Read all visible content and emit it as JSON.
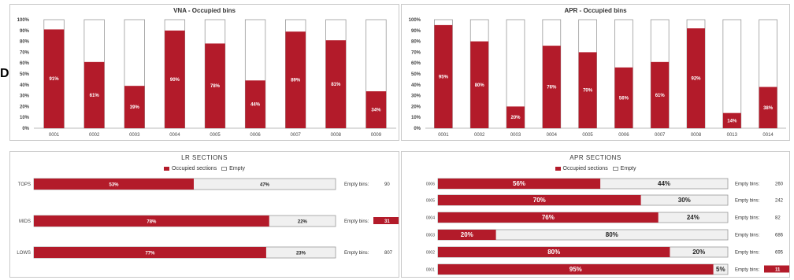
{
  "colors": {
    "occupied": "#b31b2a",
    "empty_vertical": "#ffffff",
    "empty_horizontal": "#f0f0f0",
    "outline": "#999999"
  },
  "side_mark": "D",
  "vna": {
    "title": "VNA - Occupied bins",
    "y_ticks": [
      "0%",
      "10%",
      "20%",
      "30%",
      "40%",
      "50%",
      "60%",
      "70%",
      "80%",
      "90%",
      "100%"
    ],
    "categories": [
      "0001",
      "0002",
      "0003",
      "0004",
      "0005",
      "0006",
      "0007",
      "0008",
      "0009"
    ],
    "values": [
      91,
      61,
      39,
      90,
      78,
      44,
      89,
      81,
      34
    ],
    "labels": [
      "91%",
      "61%",
      "39%",
      "90%",
      "78%",
      "44%",
      "89%",
      "81%",
      "34%"
    ]
  },
  "apr_bins": {
    "title": "APR - Occupied bins",
    "y_ticks": [
      "0%",
      "10%",
      "20%",
      "30%",
      "40%",
      "50%",
      "60%",
      "70%",
      "80%",
      "90%",
      "100%"
    ],
    "categories": [
      "0001",
      "0002",
      "0003",
      "0004",
      "0005",
      "0006",
      "0007",
      "0008",
      "0013",
      "0014"
    ],
    "values": [
      95,
      80,
      20,
      76,
      70,
      56,
      61,
      92,
      14,
      38
    ],
    "labels": [
      "95%",
      "80%",
      "20%",
      "76%",
      "70%",
      "56%",
      "61%",
      "92%",
      "14%",
      "38%"
    ]
  },
  "lr": {
    "title": "LR SECTIONS",
    "legend_occupied": "Occupied sections",
    "legend_empty": "Empty",
    "empty_bins_label": "Empty bins:",
    "rows": [
      {
        "name": "TOPS",
        "occupied": 53,
        "occupied_label": "53%",
        "empty_label": "47%",
        "empty_bins": "90",
        "highlight": false
      },
      {
        "name": "MIDS",
        "occupied": 78,
        "occupied_label": "78%",
        "empty_label": "22%",
        "empty_bins": "31",
        "highlight": true
      },
      {
        "name": "LOWS",
        "occupied": 77,
        "occupied_label": "77%",
        "empty_label": "23%",
        "empty_bins": "807",
        "highlight": false
      }
    ]
  },
  "apr_sections": {
    "title": "APR SECTIONS",
    "legend_occupied": "Occupied sections",
    "legend_empty": "Empty",
    "empty_bins_label": "Empty bins:",
    "rows": [
      {
        "name": "0006",
        "occupied": 56,
        "occupied_label": "56%",
        "empty_label": "44%",
        "empty_bins": "260",
        "highlight": false
      },
      {
        "name": "0005",
        "occupied": 70,
        "occupied_label": "70%",
        "empty_label": "30%",
        "empty_bins": "242",
        "highlight": false
      },
      {
        "name": "0004",
        "occupied": 76,
        "occupied_label": "76%",
        "empty_label": "24%",
        "empty_bins": "82",
        "highlight": false
      },
      {
        "name": "0003",
        "occupied": 20,
        "occupied_label": "20%",
        "empty_label": "80%",
        "empty_bins": "686",
        "highlight": false
      },
      {
        "name": "0002",
        "occupied": 80,
        "occupied_label": "80%",
        "empty_label": "20%",
        "empty_bins": "695",
        "highlight": false
      },
      {
        "name": "0001",
        "occupied": 95,
        "occupied_label": "95%",
        "empty_label": "5%",
        "empty_bins": "11",
        "highlight": true
      }
    ]
  },
  "chart_data": [
    {
      "type": "bar",
      "title": "VNA - Occupied bins",
      "categories": [
        "0001",
        "0002",
        "0003",
        "0004",
        "0005",
        "0006",
        "0007",
        "0008",
        "0009"
      ],
      "values": [
        91,
        61,
        39,
        90,
        78,
        44,
        89,
        81,
        34
      ],
      "ylim": [
        0,
        100
      ]
    },
    {
      "type": "bar",
      "title": "APR - Occupied bins",
      "categories": [
        "0001",
        "0002",
        "0003",
        "0004",
        "0005",
        "0006",
        "0007",
        "0008",
        "0013",
        "0014"
      ],
      "values": [
        95,
        80,
        20,
        76,
        70,
        56,
        61,
        92,
        14,
        38
      ],
      "ylim": [
        0,
        100
      ]
    },
    {
      "type": "bar",
      "title": "LR SECTIONS",
      "orientation": "horizontal",
      "categories": [
        "TOPS",
        "MIDS",
        "LOWS"
      ],
      "series": [
        {
          "name": "Occupied sections",
          "values": [
            53,
            78,
            77
          ]
        },
        {
          "name": "Empty",
          "values": [
            47,
            22,
            23
          ]
        }
      ]
    },
    {
      "type": "bar",
      "title": "APR SECTIONS",
      "orientation": "horizontal",
      "categories": [
        "0006",
        "0005",
        "0004",
        "0003",
        "0002",
        "0001"
      ],
      "series": [
        {
          "name": "Occupied sections",
          "values": [
            56,
            70,
            76,
            20,
            80,
            95
          ]
        },
        {
          "name": "Empty",
          "values": [
            44,
            30,
            24,
            80,
            20,
            5
          ]
        }
      ]
    }
  ]
}
